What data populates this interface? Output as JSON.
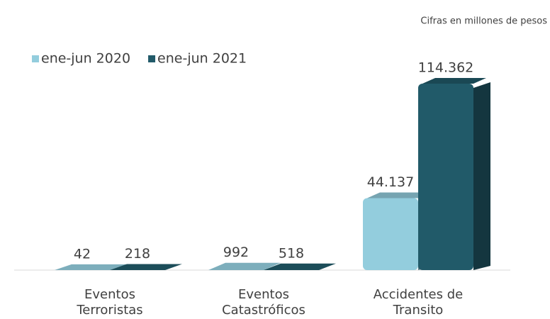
{
  "chart_data": {
    "type": "bar3d",
    "subtitle": "Cifras en millones de pesos",
    "categories": [
      "Eventos Terroristas",
      "Eventos Catastróficos",
      "Accidentes de Transito"
    ],
    "series": [
      {
        "name": "ene-jun 2020",
        "color": "#93cddd",
        "values": [
          42,
          992,
          44137
        ],
        "value_labels": [
          "42",
          "992",
          "44.137"
        ]
      },
      {
        "name": "ene-jun 2021",
        "color": "#215a69",
        "values": [
          218,
          518,
          114362
        ],
        "value_labels": [
          "218",
          "518",
          "114.362"
        ]
      }
    ],
    "ylim": [
      0,
      120000
    ],
    "legend": "top-left"
  }
}
